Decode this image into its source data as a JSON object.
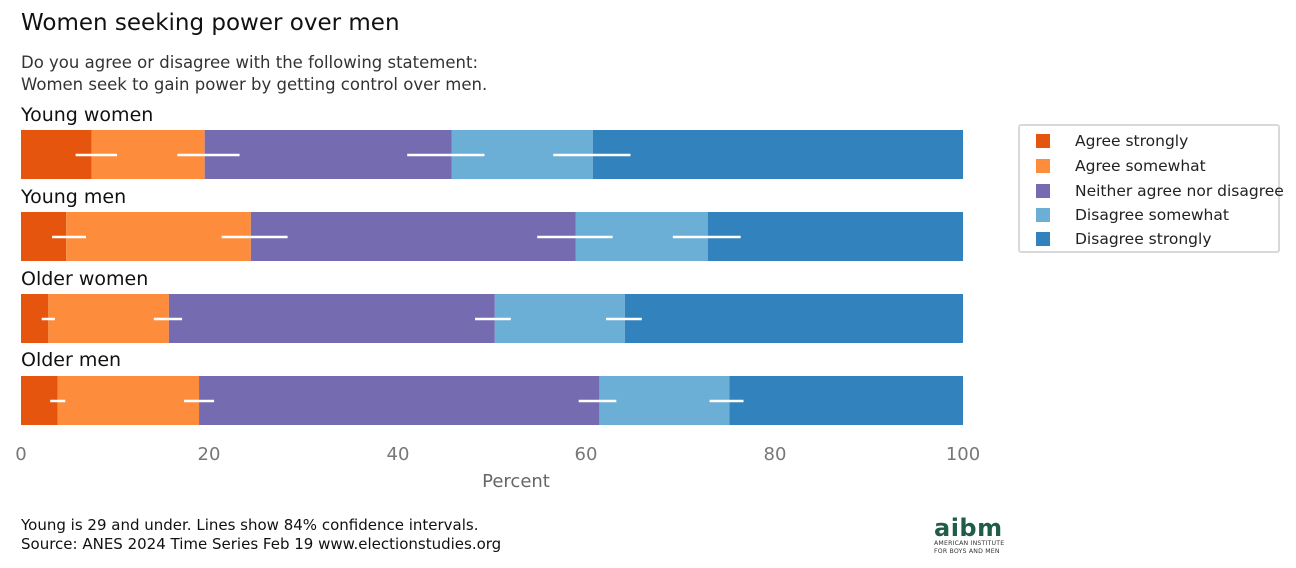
{
  "title": "Women seeking power over men",
  "subtitle": {
    "line1": "Do you agree or disagree with the following statement:",
    "line2": "Women seek to gain power by getting control over men."
  },
  "chart_data": {
    "type": "bar",
    "orientation": "horizontal",
    "stacked": true,
    "xlabel": "Percent",
    "xlim": [
      0,
      100
    ],
    "xticks": [
      "0",
      "20",
      "40",
      "60",
      "80",
      "100"
    ],
    "categories": [
      "Young women",
      "Young men",
      "Older women",
      "Older men"
    ],
    "series": [
      {
        "name": "Agree strongly",
        "color": "#e6550d",
        "values": [
          7.5,
          4.8,
          2.9,
          3.9
        ],
        "ci_center": [
          8.0,
          5.1,
          2.9,
          3.9
        ],
        "ci_half": [
          2.2,
          1.8,
          0.7,
          0.8
        ]
      },
      {
        "name": "Agree somewhat",
        "color": "#fd8d3c",
        "values": [
          12.0,
          19.6,
          12.8,
          15.0
        ],
        "ci_center": [
          19.9,
          24.8,
          15.6,
          18.9
        ],
        "ci_half": [
          3.3,
          3.5,
          1.5,
          1.6
        ]
      },
      {
        "name": "Neither agree nor disagree",
        "color": "#756bb1",
        "values": [
          26.2,
          34.5,
          34.6,
          42.5
        ],
        "ci_center": [
          45.1,
          58.8,
          50.1,
          61.2
        ],
        "ci_half": [
          4.1,
          4.0,
          1.9,
          2.0
        ]
      },
      {
        "name": "Disagree somewhat",
        "color": "#6baed6",
        "values": [
          15.0,
          14.0,
          13.8,
          13.8
        ],
        "ci_center": [
          60.6,
          72.8,
          64.0,
          74.9
        ],
        "ci_half": [
          4.1,
          3.6,
          1.9,
          1.8
        ]
      },
      {
        "name": "Disagree strongly",
        "color": "#3182bd",
        "values": [
          39.3,
          27.1,
          35.9,
          24.8
        ]
      }
    ]
  },
  "footer": {
    "line1": "Young is 29 and under. Lines show 84% confidence intervals.",
    "line2": "Source: ANES 2024 Time Series Feb 19 www.electionstudies.org"
  },
  "logo": {
    "name": "aibm",
    "line1": "AMERICAN INSTITUTE",
    "line2": "FOR BOYS AND MEN",
    "color": "#1f5c4a"
  }
}
